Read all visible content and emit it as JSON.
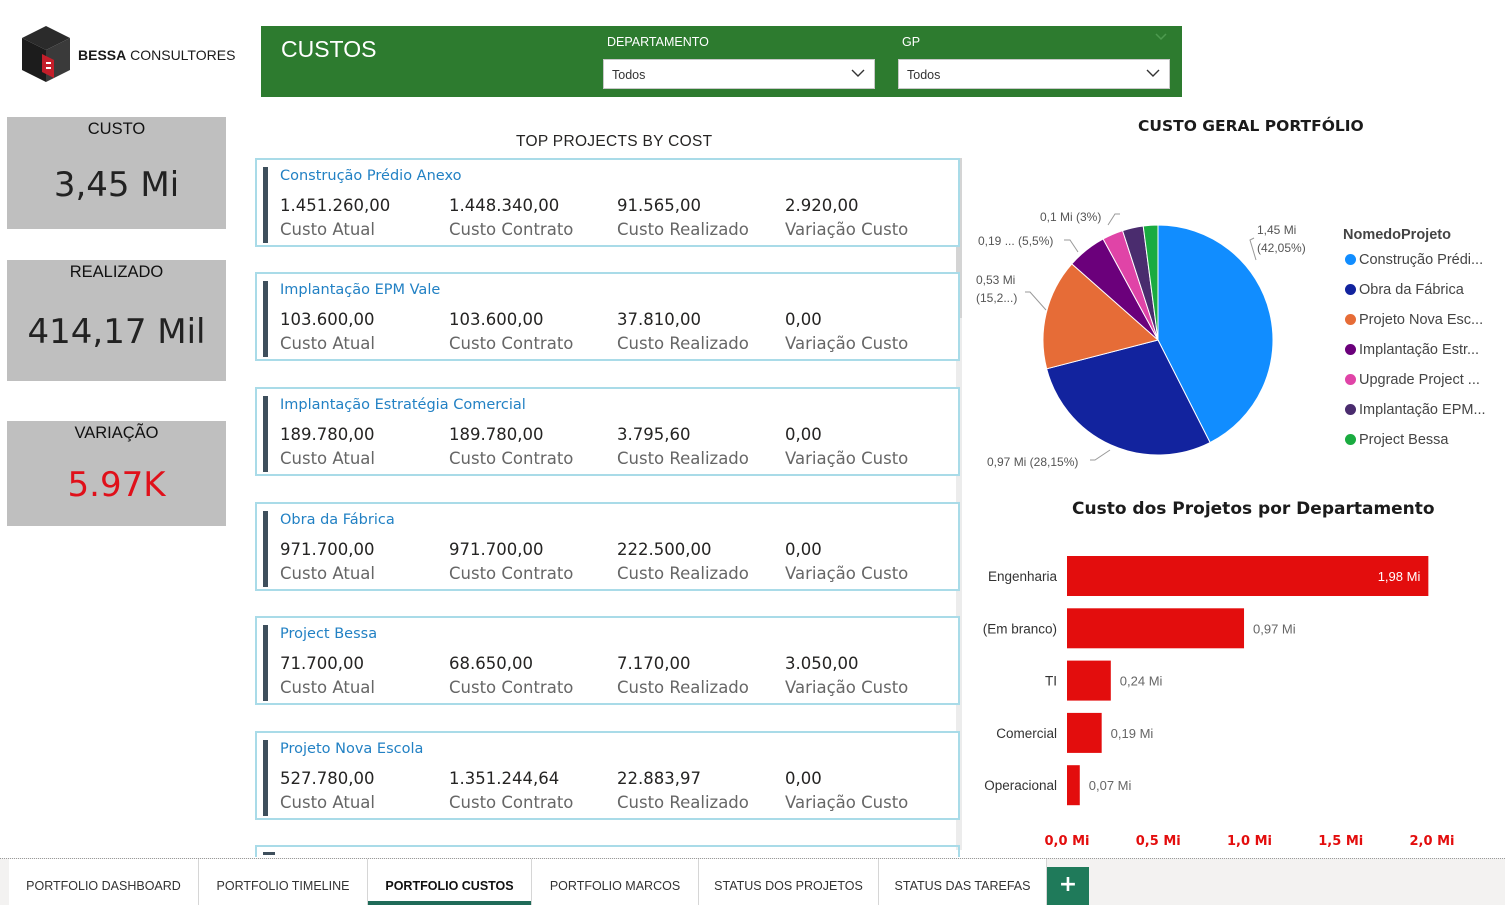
{
  "brand": {
    "name_bold": "BESSA",
    "name_rest": "CONSULTORES"
  },
  "header": {
    "title": "CUSTOS",
    "slicers": [
      {
        "label": "DEPARTAMENTO",
        "value": "Todos"
      },
      {
        "label": "GP",
        "value": "Todos"
      }
    ]
  },
  "kpis": {
    "custo": {
      "label": "CUSTO",
      "value": "3,45 Mi"
    },
    "realizado": {
      "label": "REALIZADO",
      "value": "414,17 Mil"
    },
    "variacao": {
      "label": "VARIAÇÃO",
      "value": "5.97K",
      "color": "#e0101a"
    }
  },
  "projects_section": {
    "title": "TOP PROJECTS BY COST",
    "captions": {
      "atual": "Custo Atual",
      "contrato": "Custo Contrato",
      "realizado": "Custo Realizado",
      "variacao": "Variação Custo"
    },
    "projects": [
      {
        "name": "Construção Prédio Anexo",
        "atual": "1.451.260,00",
        "contrato": "1.448.340,00",
        "realizado": "91.565,00",
        "variacao": "2.920,00"
      },
      {
        "name": "Implantação EPM Vale",
        "atual": "103.600,00",
        "contrato": "103.600,00",
        "realizado": "37.810,00",
        "variacao": "0,00"
      },
      {
        "name": "Implantação Estratégia Comercial",
        "atual": "189.780,00",
        "contrato": "189.780,00",
        "realizado": "3.795,60",
        "variacao": "0,00"
      },
      {
        "name": "Obra da Fábrica",
        "atual": "971.700,00",
        "contrato": "971.700,00",
        "realizado": "222.500,00",
        "variacao": "0,00"
      },
      {
        "name": "Project Bessa",
        "atual": "71.700,00",
        "contrato": "68.650,00",
        "realizado": "7.170,00",
        "variacao": "3.050,00"
      },
      {
        "name": "Projeto Nova Escola",
        "atual": "527.780,00",
        "contrato": "1.351.244,64",
        "realizado": "22.883,97",
        "variacao": "0,00"
      }
    ]
  },
  "pie_chart": {
    "title": "CUSTO GERAL PORTFÓLIO",
    "legend_title": "NomedoProjeto",
    "legend": [
      {
        "label": "Construção Prédi...",
        "color": "#118dff"
      },
      {
        "label": "Obra da Fábrica",
        "color": "#12239e"
      },
      {
        "label": "Projeto Nova Esc...",
        "color": "#e66c37"
      },
      {
        "label": "Implantação Estr...",
        "color": "#6b007b"
      },
      {
        "label": "Upgrade Project ...",
        "color": "#e044a7"
      },
      {
        "label": "Implantação EPM...",
        "color": "#4a2c6e"
      },
      {
        "label": "Project Bessa",
        "color": "#1aab40"
      }
    ],
    "slice_labels": {
      "construcao": "1,45 Mi\n(42,05%)",
      "obra": "0,97 Mi (28,15%)",
      "nova_escola": "0,53 Mi\n(15,2...)",
      "estrategia": "0,19 ... (5,5%)",
      "upgrade": "0,1 Mi (3%)"
    }
  },
  "bar_chart": {
    "title": "Custo dos Projetos por Departamento",
    "bar_color": "#e30d0d",
    "axis_color": "#e30d0d"
  },
  "chart_data": [
    {
      "type": "pie",
      "title": "CUSTO GERAL PORTFÓLIO",
      "legend_title": "NomedoProjeto",
      "legend_position": "right",
      "categories": [
        "Construção Prédi...",
        "Obra da Fábrica",
        "Projeto Nova Esc...",
        "Implantação Estr...",
        "Upgrade Project ...",
        "Implantação EPM...",
        "Project Bessa"
      ],
      "values": [
        1.45,
        0.97,
        0.53,
        0.19,
        0.1,
        0.1,
        0.07
      ],
      "percent": [
        42.05,
        28.15,
        15.2,
        5.5,
        3.0,
        3.0,
        2.1
      ]
    },
    {
      "type": "bar",
      "orientation": "horizontal",
      "title": "Custo dos Projetos por Departamento",
      "categories": [
        "Engenharia",
        "(Em branco)",
        "TI",
        "Comercial",
        "Operacional"
      ],
      "values": [
        1.98,
        0.97,
        0.24,
        0.19,
        0.07
      ],
      "data_labels": [
        "1,98 Mi",
        "0,97 Mi",
        "0,24 Mi",
        "0,19 Mi",
        "0,07 Mi"
      ],
      "xlim": [
        0,
        2.0
      ],
      "xticks": [
        "0,0 Mi",
        "0,5 Mi",
        "1,0 Mi",
        "1,5 Mi",
        "2,0 Mi"
      ]
    }
  ],
  "tabs": [
    {
      "label": "PORTFOLIO DASHBOARD",
      "active": false
    },
    {
      "label": "PORTFOLIO TIMELINE",
      "active": false
    },
    {
      "label": "PORTFOLIO CUSTOS",
      "active": true
    },
    {
      "label": "PORTFOLIO MARCOS",
      "active": false
    },
    {
      "label": "STATUS DOS PROJETOS",
      "active": false
    },
    {
      "label": "STATUS DAS TAREFAS",
      "active": false
    }
  ],
  "add_tab": "+"
}
